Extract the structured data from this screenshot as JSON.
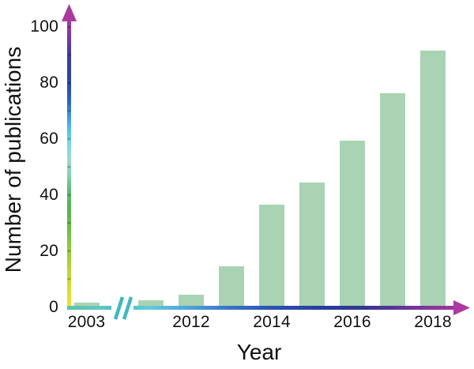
{
  "chart_data": {
    "type": "bar",
    "title": "",
    "xlabel": "Year",
    "ylabel": "Number of publications",
    "categories": [
      "2003",
      "2011",
      "2012",
      "2013",
      "2014",
      "2015",
      "2016",
      "2017",
      "2018"
    ],
    "values": [
      1,
      2,
      4,
      14,
      36,
      44,
      59,
      76,
      91
    ],
    "x_tick_labels": [
      "2003",
      "2012",
      "2014",
      "2016",
      "2018"
    ],
    "y_tick_labels": [
      "0",
      "20",
      "40",
      "60",
      "80",
      "100"
    ],
    "ylim": [
      0,
      100
    ],
    "grid": false,
    "legend": null,
    "axis_break": {
      "location": "x-axis between 2003 and 2011",
      "symbol": "//"
    },
    "bar_color": "#a9d3b3",
    "axis_style": {
      "arrow_color_y": "#a83aa0",
      "arrow_color_x": "#ad3aa0",
      "break_mark_color": "#3fb9bd",
      "y_gradient": [
        [
          0,
          "#f2e32e"
        ],
        [
          0.08,
          "#d3dd33"
        ],
        [
          0.18,
          "#a3cd3b"
        ],
        [
          0.27,
          "#74bd44"
        ],
        [
          0.35,
          "#55b352"
        ],
        [
          0.41,
          "#5cbb7d"
        ],
        [
          0.47,
          "#8bd0b4"
        ],
        [
          0.52,
          "#9ddad2"
        ],
        [
          0.57,
          "#7cd6e2"
        ],
        [
          0.62,
          "#4fc2e8"
        ],
        [
          0.67,
          "#3f97d6"
        ],
        [
          0.72,
          "#2e64bc"
        ],
        [
          0.78,
          "#2b48a6"
        ],
        [
          0.84,
          "#333f9d"
        ],
        [
          0.9,
          "#51399e"
        ],
        [
          0.95,
          "#7c3a9f"
        ],
        [
          1,
          "#a63a9f"
        ]
      ],
      "x_gradient": [
        [
          0,
          "#5cc2a4"
        ],
        [
          0.08,
          "#62c8c2"
        ],
        [
          0.13,
          "#49b9c4"
        ],
        [
          0.2,
          "#62cbd8"
        ],
        [
          0.3,
          "#4da4da"
        ],
        [
          0.4,
          "#3a74c6"
        ],
        [
          0.5,
          "#2c55b2"
        ],
        [
          0.62,
          "#273f9c"
        ],
        [
          0.72,
          "#30388f"
        ],
        [
          0.8,
          "#543595"
        ],
        [
          0.9,
          "#84379c"
        ],
        [
          1,
          "#a93a9f"
        ]
      ]
    }
  }
}
